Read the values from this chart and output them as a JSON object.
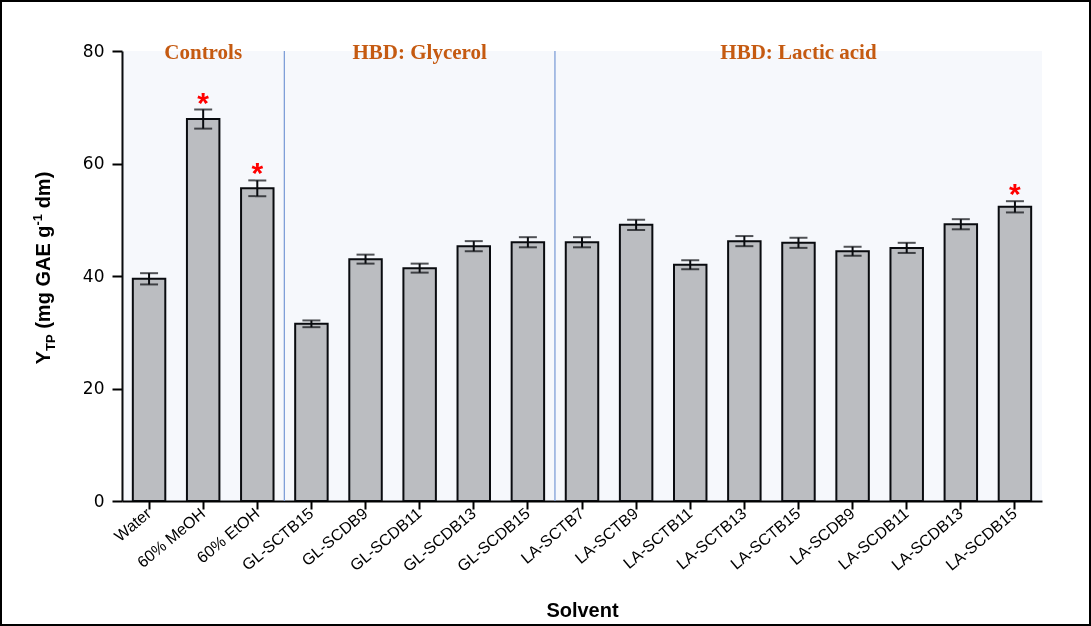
{
  "chart_data": {
    "type": "bar",
    "xlabel": "Solvent",
    "ylabel": "Y$_{TP}$ (mg GAE g$^{-1}$ dm)",
    "categories": [
      "Water",
      "60% MeOH",
      "60% EtOH",
      "GL-SCTB15",
      "GL-SCDB9",
      "GL-SCDB11",
      "GL-SCDB13",
      "GL-SCDB15",
      "LA-SCTB7",
      "LA-SCTB9",
      "LA-SCTB11",
      "LA-SCTB13",
      "LA-SCTB15",
      "LA-SCDB9",
      "LA-SCDB11",
      "LA-SCDB13",
      "LA-SCDB15"
    ],
    "values": [
      39.5,
      67.9,
      55.6,
      31.5,
      43.0,
      41.4,
      45.3,
      46.0,
      46.0,
      49.1,
      42.0,
      46.2,
      45.9,
      44.4,
      45.0,
      49.2,
      52.3
    ],
    "errors": [
      1.0,
      1.7,
      1.4,
      0.6,
      0.8,
      0.8,
      0.9,
      0.9,
      0.9,
      0.9,
      0.8,
      0.9,
      0.9,
      0.8,
      0.9,
      0.9,
      1.0
    ],
    "color": "#c0c0c0",
    "ylim": [
      0,
      80
    ],
    "yticks": [
      0,
      20,
      40,
      60,
      80
    ],
    "grid": false,
    "bands": [
      {
        "axis": "x",
        "from": "Water",
        "to": "60% EtOH",
        "label": "Controls",
        "color": "#7f9fd8"
      },
      {
        "axis": "x",
        "from": "GL-SCTB15",
        "to": "GL-SCDB15",
        "label": "HBD: Glycerol",
        "color": "#7f9fd8"
      },
      {
        "axis": "x",
        "from": "LA-SCTB7",
        "to": "LA-SCDB15",
        "label": "HBD: Lactic acid",
        "color": "#7f9fd8"
      }
    ],
    "annotations": [
      {
        "text": "*",
        "x": "60% MeOH",
        "y": 69.6
      },
      {
        "text": "*",
        "x": "60% EtOH",
        "y": 57.0
      },
      {
        "text": "*",
        "x": "LA-SCDB15",
        "y": 53.3
      }
    ]
  }
}
